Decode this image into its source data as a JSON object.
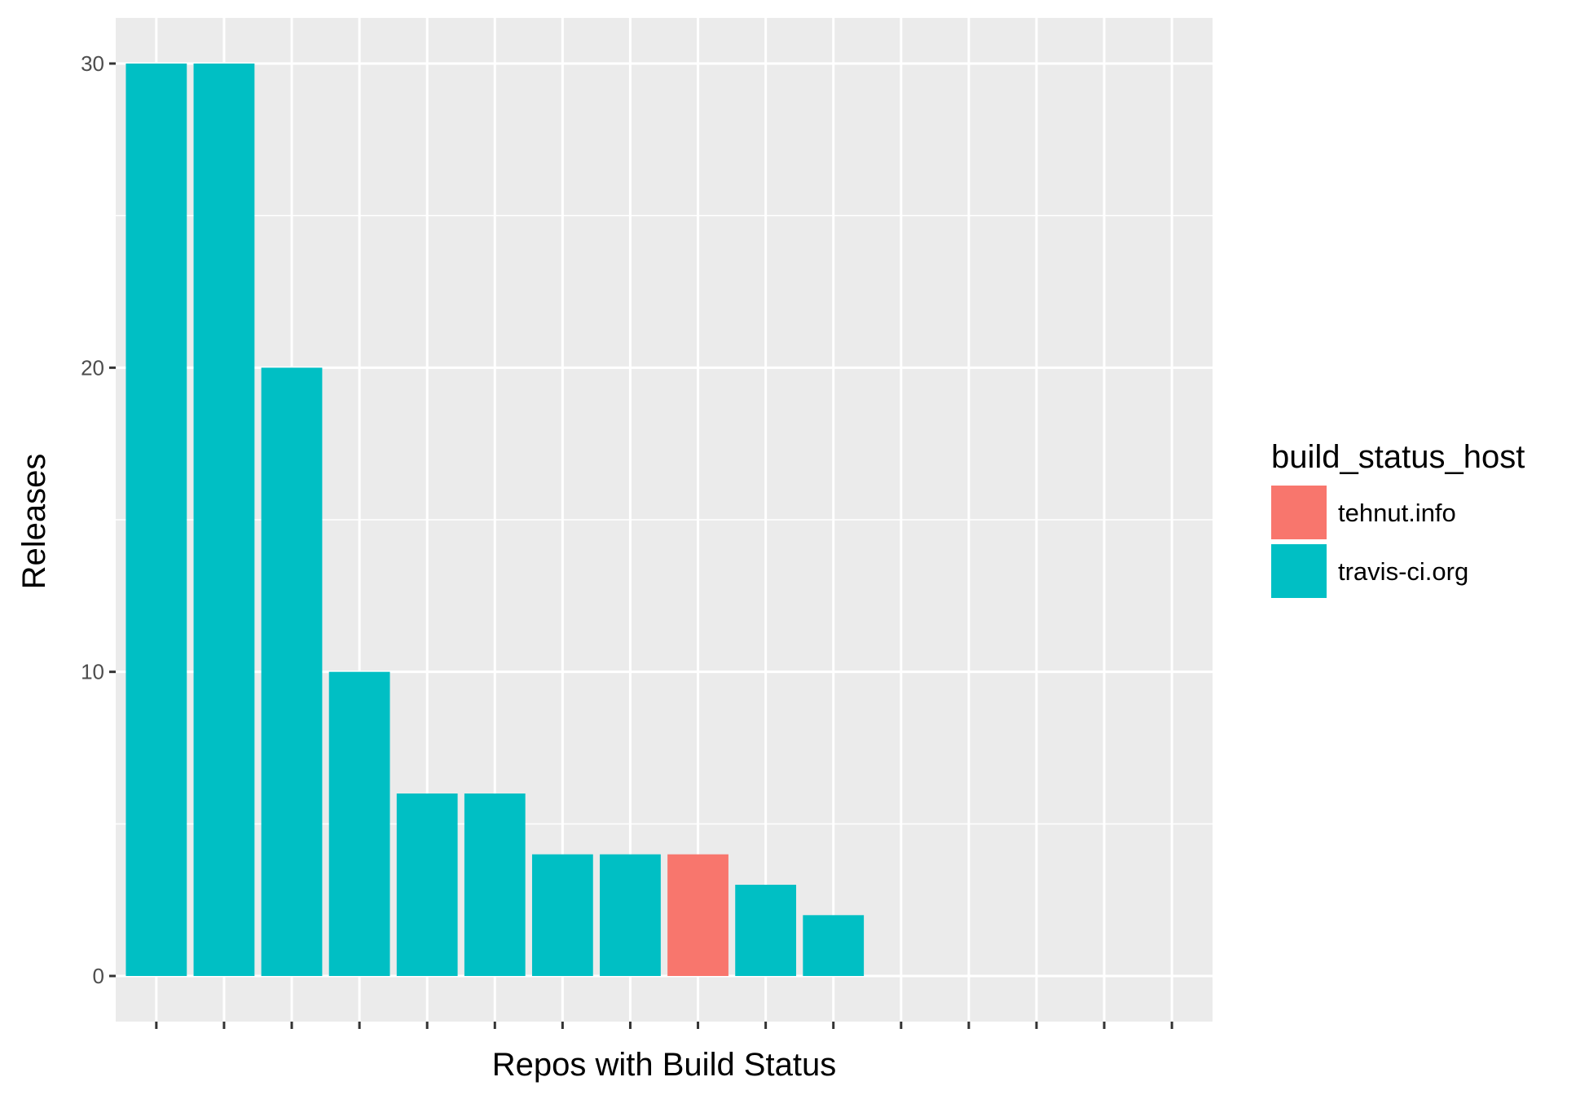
{
  "chart_data": {
    "type": "bar",
    "categories": [
      "",
      "",
      "",
      "",
      "",
      "",
      "",
      "",
      "",
      "",
      "",
      "",
      "",
      "",
      "",
      ""
    ],
    "values": [
      30,
      30,
      20,
      10,
      6,
      6,
      4,
      4,
      4,
      3,
      2,
      0,
      0,
      0,
      0,
      0
    ],
    "fill_group": [
      "travis-ci.org",
      "travis-ci.org",
      "travis-ci.org",
      "travis-ci.org",
      "travis-ci.org",
      "travis-ci.org",
      "travis-ci.org",
      "travis-ci.org",
      "tehnut.info",
      "travis-ci.org",
      "travis-ci.org",
      "",
      "",
      "",
      "",
      ""
    ],
    "xlabel": "Repos with Build Status",
    "ylabel": "Releases",
    "ylim": [
      -1.5,
      31.5
    ],
    "yticks": [
      0,
      10,
      20,
      30
    ],
    "grid": true,
    "legend": {
      "title": "build_status_host",
      "placement": "right",
      "entries": [
        {
          "label": "tehnut.info",
          "color": "#F8766D"
        },
        {
          "label": "travis-ci.org",
          "color": "#00BFC4"
        }
      ]
    },
    "colors": {
      "panel_background": "#EBEBEB",
      "grid": "#FFFFFF",
      "tehnut.info": "#F8766D",
      "travis-ci.org": "#00BFC4"
    }
  }
}
